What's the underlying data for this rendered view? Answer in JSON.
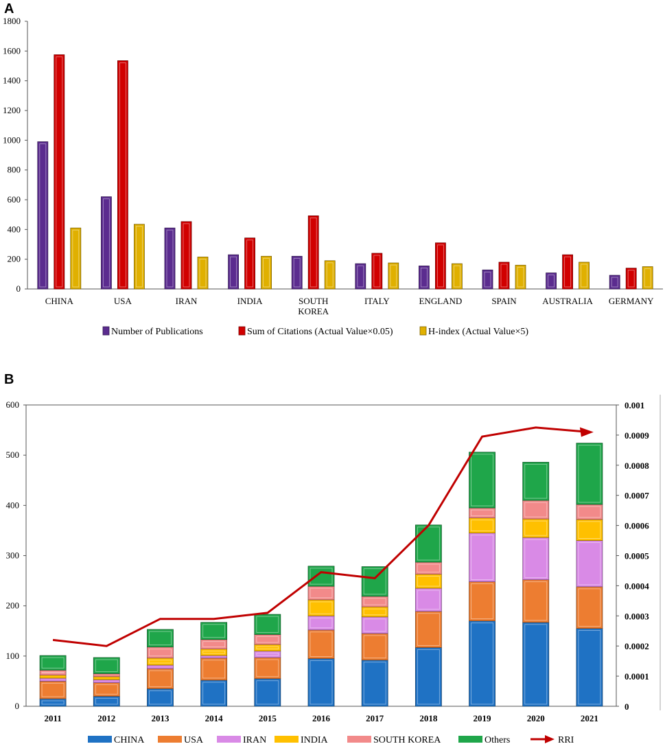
{
  "chart_data": [
    {
      "panel": "A",
      "type": "bar",
      "categories": [
        [
          "CHINA"
        ],
        [
          "USA"
        ],
        [
          "IRAN"
        ],
        [
          "INDIA"
        ],
        [
          "SOUTH",
          "KOREA"
        ],
        [
          "ITALY"
        ],
        [
          "ENGLAND"
        ],
        [
          "SPAIN"
        ],
        [
          "AUSTRALIA"
        ],
        [
          "GERMANY"
        ]
      ],
      "series": [
        {
          "name": "Number of Publications",
          "color": "#5b2c8f",
          "values": [
            990,
            620,
            410,
            230,
            220,
            170,
            155,
            128,
            108,
            92
          ]
        },
        {
          "name": "Sum of Citations (Actual Value×0.05)",
          "color": "#d10000",
          "values": [
            1575,
            1535,
            453,
            343,
            492,
            240,
            310,
            180,
            230,
            140
          ]
        },
        {
          "name": "H-index (Actual Value×5)",
          "color": "#e0b000",
          "values": [
            410,
            435,
            215,
            220,
            190,
            175,
            170,
            160,
            180,
            150
          ]
        }
      ],
      "ylim": [
        0,
        1800
      ],
      "yticks": [
        0,
        200,
        400,
        600,
        800,
        1000,
        1200,
        1400,
        1600,
        1800
      ]
    },
    {
      "panel": "B",
      "type": "stacked-bar-line",
      "categories": [
        "2011",
        "2012",
        "2013",
        "2014",
        "2015",
        "2016",
        "2017",
        "2018",
        "2019",
        "2020",
        "2021"
      ],
      "series": [
        {
          "name": "CHINA",
          "color": "#1f72c4",
          "values": [
            15,
            20,
            35,
            52,
            55,
            95,
            92,
            117,
            170,
            167,
            155
          ]
        },
        {
          "name": "USA",
          "color": "#ed7d31",
          "values": [
            35,
            27,
            40,
            44,
            42,
            57,
            53,
            72,
            78,
            85,
            83
          ]
        },
        {
          "name": "IRAN",
          "color": "#d98ae6",
          "values": [
            6,
            6,
            7,
            5,
            13,
            28,
            33,
            46,
            97,
            84,
            92
          ]
        },
        {
          "name": "INDIA",
          "color": "#ffc000",
          "values": [
            6,
            6,
            14,
            13,
            13,
            32,
            20,
            28,
            30,
            37,
            42
          ]
        },
        {
          "name": "SOUTH KOREA",
          "color": "#f28a8a",
          "values": [
            10,
            6,
            22,
            19,
            20,
            27,
            21,
            24,
            20,
            37,
            30
          ]
        },
        {
          "name": "Others",
          "color": "#1fa64a",
          "values": [
            29,
            32,
            35,
            34,
            40,
            40,
            59,
            74,
            111,
            76,
            122
          ]
        }
      ],
      "line": {
        "name": "RRI",
        "color": "#c00000",
        "values": [
          0.00022,
          0.0002,
          0.00029,
          0.00029,
          0.00031,
          0.000445,
          0.000425,
          0.0006,
          0.000895,
          0.000925,
          0.00091
        ]
      },
      "ylim": [
        0,
        600
      ],
      "yticks": [
        0,
        100,
        200,
        300,
        400,
        500,
        600
      ],
      "y2lim": [
        0,
        0.001
      ],
      "y2ticks": [
        "0",
        "0.0001",
        "0.0002",
        "0.0003",
        "0.0004",
        "0.0005",
        "0.0006",
        "0.0007",
        "0.0008",
        "0.0009",
        "0.001"
      ]
    }
  ]
}
